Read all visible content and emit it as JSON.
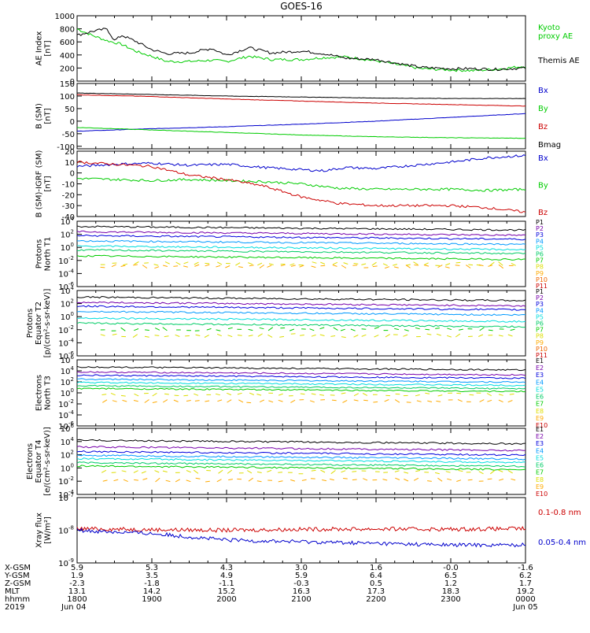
{
  "title": "GOES-16",
  "colors": {
    "black": "#000000",
    "green": "#00cc00",
    "blue": "#0000cc",
    "red": "#cc0000",
    "p_colors": [
      "#000000",
      "#7700aa",
      "#0000dd",
      "#0099ff",
      "#00dddd",
      "#00cc66",
      "#00cc00",
      "#dddd00",
      "#ffaa00",
      "#ee6600",
      "#cc0000"
    ],
    "e_colors": [
      "#000000",
      "#7700aa",
      "#0000dd",
      "#0099ff",
      "#00dddd",
      "#00cc66",
      "#00cc00",
      "#dddd00",
      "#ffaa00",
      "#cc0000"
    ]
  },
  "chart_data": [
    {
      "id": "ae",
      "type": "line",
      "ylabel": [
        "AE Index",
        "[nT]"
      ],
      "ylim": [
        0,
        1000
      ],
      "yticks": [
        "0",
        "200",
        "400",
        "600",
        "800",
        "1000"
      ],
      "series": [
        {
          "name": "Kyoto proxy AE",
          "legend": [
            "Kyoto",
            "proxy AE"
          ],
          "color": "green",
          "x": [
            0,
            0.2,
            0.4,
            0.6,
            0.8,
            1.0,
            1.2,
            1.5,
            1.8,
            2.0,
            2.3,
            2.6,
            3.0,
            3.3,
            3.6,
            4.0,
            4.3,
            4.6,
            5.0,
            5.3,
            5.6,
            6.0
          ],
          "y": [
            800,
            700,
            620,
            560,
            450,
            380,
            300,
            300,
            320,
            300,
            380,
            330,
            330,
            360,
            370,
            310,
            250,
            190,
            170,
            160,
            180,
            230
          ]
        },
        {
          "name": "Themis AE",
          "legend": [
            "Themis AE"
          ],
          "color": "black",
          "x": [
            0,
            0.2,
            0.4,
            0.5,
            0.6,
            0.8,
            1.0,
            1.2,
            1.5,
            1.8,
            2.0,
            2.3,
            2.6,
            3.0,
            3.3,
            3.6,
            4.0,
            4.3,
            4.6,
            5.0,
            5.3,
            5.6,
            6.0
          ],
          "y": [
            700,
            760,
            800,
            620,
            700,
            600,
            480,
            420,
            430,
            500,
            400,
            510,
            430,
            460,
            420,
            350,
            330,
            270,
            210,
            190,
            190,
            180,
            200
          ]
        }
      ]
    },
    {
      "id": "bsm",
      "type": "line",
      "ylabel": [
        "B (SM)",
        "[nT]"
      ],
      "ylim": [
        -110,
        150
      ],
      "yticks": [
        "150",
        "100",
        "50",
        "0",
        "-50",
        "-100"
      ],
      "ytick_values": [
        150,
        100,
        50,
        0,
        -50,
        -100
      ],
      "series": [
        {
          "name": "Bx",
          "color": "blue",
          "x": [
            0,
            1,
            2,
            3,
            4,
            5,
            6
          ],
          "y": [
            -40,
            -30,
            -22,
            -12,
            0,
            15,
            30
          ]
        },
        {
          "name": "By",
          "color": "green",
          "x": [
            0,
            1,
            2,
            3,
            4,
            5,
            6
          ],
          "y": [
            -25,
            -35,
            -45,
            -55,
            -62,
            -66,
            -68
          ]
        },
        {
          "name": "Bz",
          "color": "red",
          "x": [
            0,
            1,
            2,
            3,
            4,
            5,
            6
          ],
          "y": [
            105,
            98,
            88,
            80,
            72,
            66,
            60
          ]
        },
        {
          "name": "Bmag",
          "color": "black",
          "x": [
            0,
            1,
            2,
            3,
            4,
            5,
            6
          ],
          "y": [
            112,
            106,
            100,
            96,
            92,
            90,
            90
          ]
        }
      ]
    },
    {
      "id": "bigrf",
      "type": "line",
      "ylabel": [
        "B (SM)-IGRF (SM)",
        "[nT]"
      ],
      "ylim": [
        -40,
        20
      ],
      "yticks": [
        "20",
        "10",
        "0",
        "-10",
        "-20",
        "-30",
        "-40"
      ],
      "ytick_values": [
        20,
        10,
        0,
        -10,
        -20,
        -30,
        -40
      ],
      "series": [
        {
          "name": "Bx",
          "color": "blue",
          "x": [
            0,
            0.5,
            1,
            1.5,
            2,
            2.5,
            3,
            3.3,
            3.6,
            4,
            4.5,
            5,
            5.5,
            6
          ],
          "y": [
            6,
            8,
            9,
            7,
            8,
            5,
            3,
            2,
            5,
            4,
            7,
            10,
            14,
            16
          ]
        },
        {
          "name": "By",
          "color": "green",
          "x": [
            0,
            0.5,
            1,
            1.5,
            2,
            2.5,
            3,
            3.5,
            4,
            4.5,
            5,
            5.5,
            6
          ],
          "y": [
            -5,
            -6,
            -7,
            -6,
            -7,
            -8,
            -10,
            -14,
            -15,
            -15,
            -15,
            -16,
            -15
          ]
        },
        {
          "name": "Bz",
          "color": "red",
          "x": [
            0,
            0.5,
            1,
            1.5,
            2,
            2.5,
            3,
            3.5,
            4,
            4.5,
            5,
            5.5,
            6
          ],
          "y": [
            10,
            8,
            6,
            -2,
            -6,
            -12,
            -22,
            -28,
            -30,
            -30,
            -30,
            -32,
            -36
          ]
        }
      ]
    },
    {
      "id": "pt1",
      "type": "line",
      "log": true,
      "ylabel": [
        "Protons",
        "North T1"
      ],
      "ylim_exp": [
        -6,
        4
      ],
      "yticks_exp": [
        4,
        2,
        0,
        -2,
        -4,
        -6
      ],
      "legend": [
        "P1",
        "P2",
        "P3",
        "P4",
        "P5",
        "P6",
        "P7",
        "P8",
        "P9",
        "P10",
        "P11"
      ],
      "levels": [
        3.0,
        2.2,
        1.6,
        0.8,
        0.0,
        -0.6,
        -1.5,
        -2.5,
        -2.9
      ]
    },
    {
      "id": "pt2",
      "type": "line",
      "log": true,
      "ylabel": [
        "Protons",
        "Equator T2",
        "[p/(cm²-s-sr-keV)]"
      ],
      "ylim_exp": [
        -6,
        4
      ],
      "yticks_exp": [
        4,
        2,
        0,
        -2,
        -4,
        -6
      ],
      "legend": [
        "P1",
        "P2",
        "P3",
        "P4",
        "P5",
        "P6",
        "P7",
        "P8",
        "P9",
        "P10",
        "P11"
      ],
      "levels": [
        2.8,
        2.0,
        1.4,
        0.6,
        -0.4,
        -1.2,
        -1.9,
        -2.9
      ]
    },
    {
      "id": "et3",
      "type": "line",
      "log": true,
      "ylabel": [
        "Electrons",
        "North T3"
      ],
      "ylim_exp": [
        -6,
        6
      ],
      "yticks_exp": [
        6,
        4,
        2,
        0,
        -2,
        -4,
        -6
      ],
      "legend": [
        "E1",
        "E2",
        "E3",
        "E4",
        "E5",
        "E6",
        "E7",
        "E8",
        "E9",
        "E10"
      ],
      "levels": [
        4.5,
        3.6,
        3.0,
        2.3,
        1.7,
        1.1,
        0.6,
        -0.3,
        -1.5
      ]
    },
    {
      "id": "et4",
      "type": "line",
      "log": true,
      "ylabel": [
        "Electrons",
        "Equator T4",
        "[e/(cm²-s-sr-keV)]"
      ],
      "ylim_exp": [
        -4,
        6
      ],
      "yticks_exp": [
        6,
        4,
        2,
        0,
        -2,
        -4
      ],
      "legend": [
        "E1",
        "E2",
        "E3",
        "E4",
        "E5",
        "E6",
        "E7",
        "E8",
        "E9",
        "E10"
      ],
      "levels": [
        4.0,
        3.0,
        2.3,
        1.7,
        1.2,
        0.6,
        0.1,
        -0.6,
        -1.8
      ]
    },
    {
      "id": "xray",
      "type": "line",
      "log": true,
      "ylabel": [
        "Xray flux",
        "[W/m²]"
      ],
      "ylim_exp": [
        -9,
        -7
      ],
      "yticks_exp": [
        -7,
        -8,
        -9
      ],
      "series": [
        {
          "name": "0.1-0.8 nm",
          "color": "red",
          "x": [
            0,
            1,
            2,
            3,
            4,
            5,
            6
          ],
          "y": [
            -7.95,
            -7.98,
            -8.0,
            -7.97,
            -7.96,
            -7.97,
            -7.95
          ]
        },
        {
          "name": "0.05-0.4 nm",
          "color": "blue",
          "x": [
            0,
            1,
            2,
            3,
            4,
            5,
            6
          ],
          "y": [
            -8.0,
            -8.1,
            -8.3,
            -8.35,
            -8.4,
            -8.45,
            -8.45
          ]
        }
      ]
    }
  ],
  "xaxis": {
    "row_labels": [
      "X-GSM",
      "Y-GSM",
      "Z-GSM",
      "MLT",
      "hhmm",
      "2019"
    ],
    "columns": [
      {
        "values": [
          "5.9",
          "1.9",
          "-2.3",
          "13.1",
          "1800",
          "Jun 04"
        ]
      },
      {
        "values": [
          "5.3",
          "3.5",
          "-1.8",
          "14.2",
          "1900",
          ""
        ]
      },
      {
        "values": [
          "4.3",
          "4.9",
          "-1.1",
          "15.2",
          "2000",
          ""
        ]
      },
      {
        "values": [
          "3.0",
          "5.9",
          "-0.3",
          "16.3",
          "2100",
          ""
        ]
      },
      {
        "values": [
          "1.6",
          "6.4",
          "0.5",
          "17.3",
          "2200",
          ""
        ]
      },
      {
        "values": [
          "-0.0",
          "6.5",
          "1.2",
          "18.3",
          "2300",
          ""
        ]
      },
      {
        "values": [
          "-1.6",
          "6.2",
          "1.7",
          "19.2",
          "0000",
          "Jun 05"
        ]
      }
    ]
  }
}
